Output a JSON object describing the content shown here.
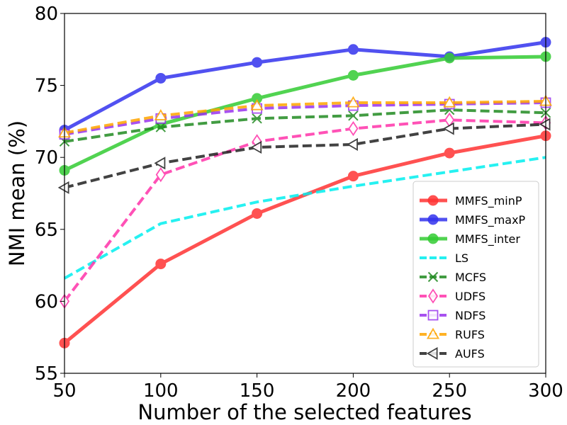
{
  "chart_data": {
    "type": "line",
    "title": "",
    "xlabel": "Number of the selected features",
    "ylabel": "NMI mean (%)",
    "x": [
      50,
      100,
      150,
      200,
      250,
      300
    ],
    "xlim": [
      50,
      300
    ],
    "ylim": [
      55,
      80
    ],
    "xticks": [
      "50",
      "100",
      "150",
      "200",
      "250",
      "300"
    ],
    "yticks": [
      "55",
      "60",
      "65",
      "70",
      "75",
      "80"
    ],
    "xtick_values": [
      50,
      100,
      150,
      200,
      250,
      300
    ],
    "ytick_values": [
      55,
      60,
      65,
      70,
      75,
      80
    ],
    "grid": false,
    "legend_position": "lower-right",
    "series": [
      {
        "name": "MMFS_minP",
        "values": [
          57.1,
          62.6,
          66.1,
          68.7,
          70.3,
          71.5
        ],
        "color": "#ff3333",
        "style": "solid",
        "marker": "circle-filled"
      },
      {
        "name": "MMFS_maxP",
        "values": [
          71.9,
          75.5,
          76.6,
          77.5,
          77.0,
          78.0
        ],
        "color": "#3333ee",
        "style": "solid",
        "marker": "circle-filled"
      },
      {
        "name": "MMFS_inter",
        "values": [
          69.1,
          72.3,
          74.1,
          75.7,
          76.9,
          77.0
        ],
        "color": "#33cc33",
        "style": "solid",
        "marker": "circle-filled"
      },
      {
        "name": "LS",
        "values": [
          61.6,
          65.4,
          66.9,
          68.0,
          69.0,
          70.0
        ],
        "color": "#00eeee",
        "style": "dashed",
        "marker": "none"
      },
      {
        "name": "MCFS",
        "values": [
          71.1,
          72.1,
          72.7,
          72.9,
          73.3,
          73.1
        ],
        "color": "#228b22",
        "style": "dashed",
        "marker": "x"
      },
      {
        "name": "UDFS",
        "values": [
          60.0,
          68.8,
          71.1,
          72.0,
          72.6,
          72.4
        ],
        "color": "#ff33aa",
        "style": "dashed",
        "marker": "diamond-open"
      },
      {
        "name": "NDFS",
        "values": [
          71.6,
          72.7,
          73.4,
          73.6,
          73.7,
          73.8
        ],
        "color": "#9933ee",
        "style": "dashed",
        "marker": "square-open"
      },
      {
        "name": "RUFS",
        "values": [
          71.7,
          72.9,
          73.6,
          73.8,
          73.8,
          73.9
        ],
        "color": "#ffa500",
        "style": "dashed",
        "marker": "triangle-up-open"
      },
      {
        "name": "AUFS",
        "values": [
          67.9,
          69.6,
          70.7,
          70.9,
          72.0,
          72.3
        ],
        "color": "#222222",
        "style": "dashed",
        "marker": "triangle-left-open"
      }
    ]
  }
}
